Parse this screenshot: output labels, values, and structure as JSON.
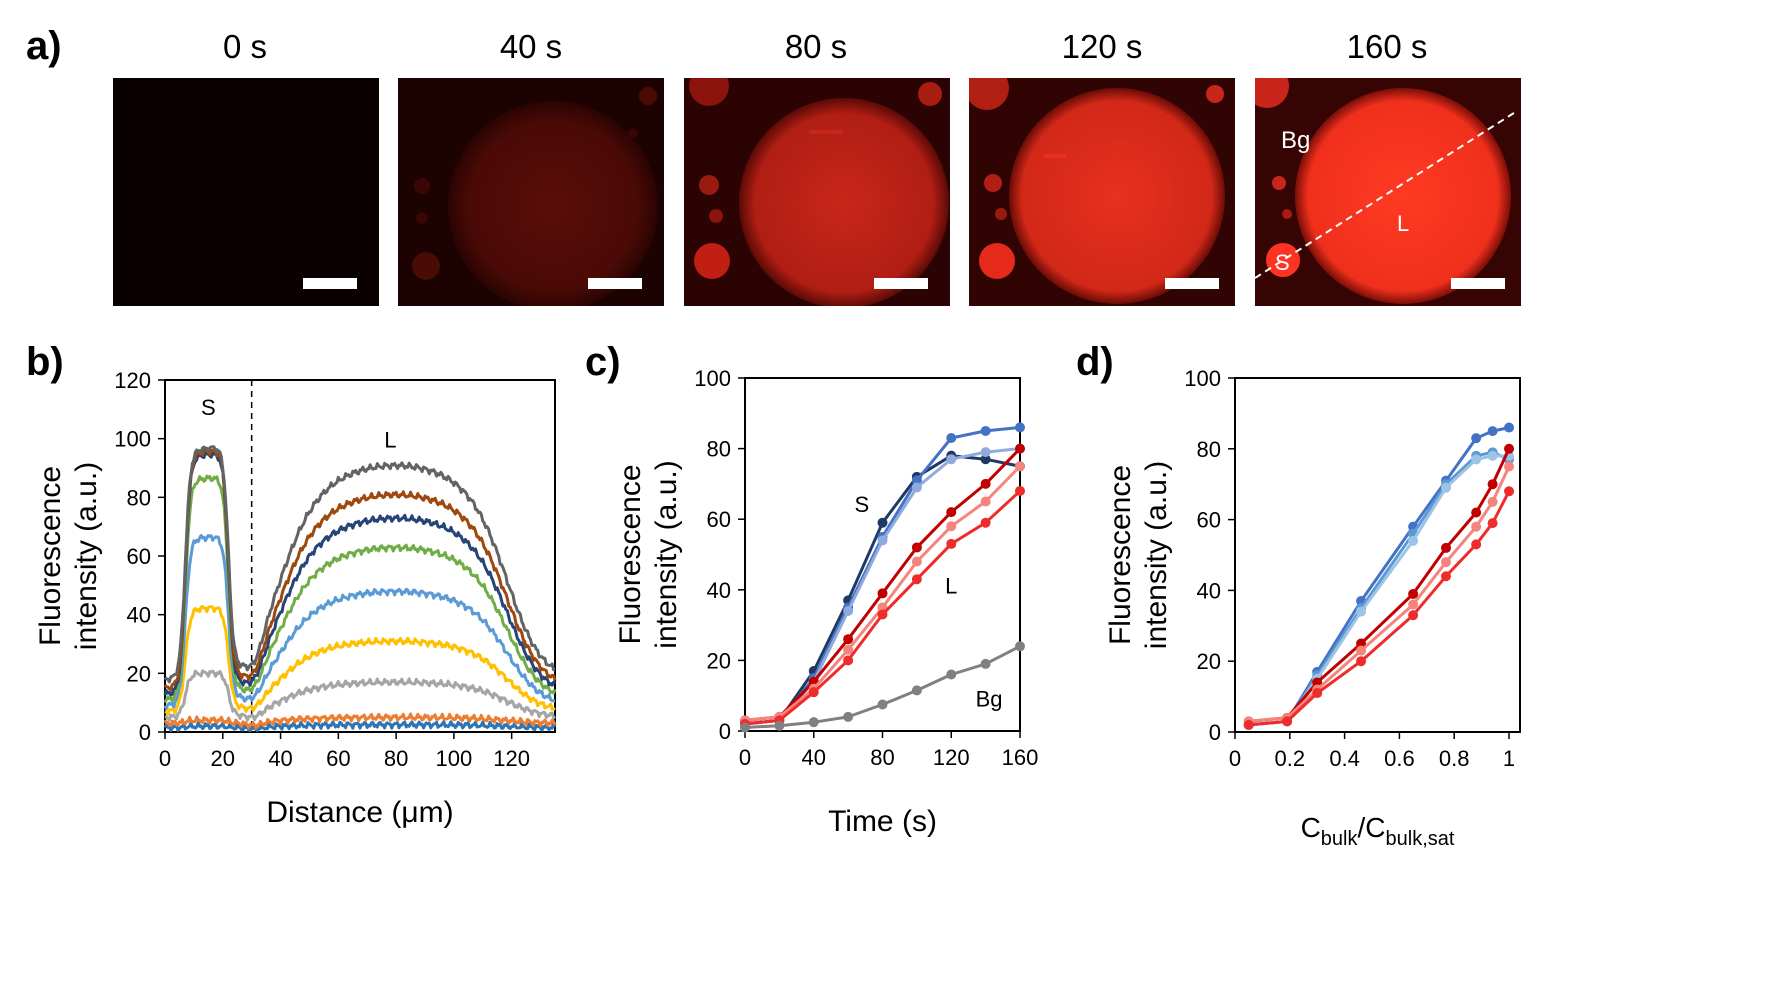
{
  "panels": {
    "a": {
      "letter": "a)",
      "frames": [
        {
          "time": "0 s",
          "level": 0.03
        },
        {
          "time": "40 s",
          "level": 0.22
        },
        {
          "time": "80 s",
          "level": 0.55
        },
        {
          "time": "120 s",
          "level": 0.72
        },
        {
          "time": "160 s",
          "level": 0.88
        }
      ],
      "annotations": {
        "bg": "Bg",
        "small": "S",
        "large": "L"
      },
      "colors": {
        "background": "#2a0000",
        "droplet": "#ff1a0a"
      }
    },
    "b": {
      "letter": "b)"
    },
    "c": {
      "letter": "c)"
    },
    "d": {
      "letter": "d)"
    }
  },
  "chart_data": [
    {
      "id": "b",
      "type": "line",
      "xlabel": "Distance (μm)",
      "ylabel_lines": [
        "Fluorescence",
        "intensity (a.u.)"
      ],
      "xlim": [
        0,
        135
      ],
      "ylim": [
        0,
        120
      ],
      "xticks": [
        0,
        20,
        40,
        60,
        80,
        100,
        120
      ],
      "yticks": [
        0,
        20,
        40,
        60,
        80,
        100,
        120
      ],
      "divider_x": 30,
      "annotations": [
        {
          "text": "S",
          "x": 15,
          "y": 108
        },
        {
          "text": "L",
          "x": 78,
          "y": 97
        }
      ],
      "series_params": [
        {
          "color": "#2e75b6",
          "base": 1.5,
          "S": 2,
          "L": 2.5
        },
        {
          "color": "#ed7d31",
          "base": 3,
          "S": 4,
          "L": 5
        },
        {
          "color": "#a5a5a5",
          "base": 5,
          "S": 20,
          "L": 17
        },
        {
          "color": "#ffc000",
          "base": 7,
          "S": 42,
          "L": 31
        },
        {
          "color": "#5b9bd5",
          "base": 9,
          "S": 66,
          "L": 48
        },
        {
          "color": "#70ad47",
          "base": 11,
          "S": 86,
          "L": 63
        },
        {
          "color": "#264478",
          "base": 13,
          "S": 94,
          "L": 73
        },
        {
          "color": "#9e480e",
          "base": 15,
          "S": 95,
          "L": 81
        },
        {
          "color": "#636363",
          "base": 18,
          "S": 96,
          "L": 91
        }
      ]
    },
    {
      "id": "c",
      "type": "line",
      "xlabel": "Time (s)",
      "ylabel_lines": [
        "Fluorescence",
        "intensity (a.u.)"
      ],
      "xlim": [
        0,
        160
      ],
      "ylim": [
        0,
        100
      ],
      "xticks": [
        0,
        40,
        80,
        120,
        160
      ],
      "yticks": [
        0,
        20,
        40,
        60,
        80,
        100
      ],
      "annotations": [
        {
          "text": "S",
          "x": 68,
          "y": 62
        },
        {
          "text": "L",
          "x": 120,
          "y": 39
        },
        {
          "text": "Bg",
          "x": 142,
          "y": 7
        }
      ],
      "x": [
        0,
        20,
        40,
        60,
        80,
        100,
        120,
        140,
        160
      ],
      "series": [
        {
          "color": "#1f3864",
          "values": [
            2,
            3,
            17,
            37,
            59,
            72,
            78,
            77,
            75
          ]
        },
        {
          "color": "#4472c4",
          "values": [
            2,
            3,
            15,
            35,
            55,
            71,
            83,
            85,
            86
          ]
        },
        {
          "color": "#8faadc",
          "values": [
            2,
            3,
            14,
            34,
            54,
            69,
            77,
            79,
            80
          ]
        },
        {
          "color": "#c00000",
          "values": [
            3,
            4,
            14,
            26,
            39,
            52,
            62,
            70,
            80
          ]
        },
        {
          "color": "#f4847c",
          "values": [
            3,
            4,
            12,
            23,
            35,
            48,
            58,
            65,
            75
          ]
        },
        {
          "color": "#ee2c2c",
          "values": [
            2,
            3,
            11,
            20,
            33,
            43,
            53,
            59,
            68
          ]
        },
        {
          "color": "#808080",
          "values": [
            1,
            1.5,
            2.5,
            4,
            7.5,
            11.5,
            16,
            19,
            24
          ]
        }
      ]
    },
    {
      "id": "d",
      "type": "line",
      "xlabel_main": "C",
      "xlabel_sub1": "bulk",
      "xlabel_slash": "/C",
      "xlabel_sub2": "bulk,sat",
      "ylabel_lines": [
        "Fluorescence",
        "intensity (a.u.)"
      ],
      "xlim": [
        0,
        1.04
      ],
      "ylim": [
        0,
        100
      ],
      "xticks": [
        0,
        0.2,
        0.4,
        0.6,
        0.8,
        1
      ],
      "xticklabels": [
        "0",
        "0.2",
        "0.4",
        "0.6",
        "0.8",
        "1"
      ],
      "yticks": [
        0,
        20,
        40,
        60,
        80,
        100
      ],
      "x": [
        0.05,
        0.19,
        0.3,
        0.46,
        0.65,
        0.77,
        0.88,
        0.94,
        1.0
      ],
      "series": [
        {
          "color": "#4472c4",
          "values": [
            2,
            3,
            17,
            37,
            58,
            71,
            83,
            85,
            86
          ]
        },
        {
          "color": "#5b9bd5",
          "values": [
            2,
            3,
            16,
            35,
            56,
            70,
            78,
            79,
            77
          ]
        },
        {
          "color": "#9dc3e6",
          "values": [
            2,
            3,
            15,
            34,
            54,
            69,
            77,
            78,
            78
          ]
        },
        {
          "color": "#c00000",
          "values": [
            3,
            4,
            14,
            25,
            39,
            52,
            62,
            70,
            80
          ]
        },
        {
          "color": "#f4847c",
          "values": [
            3,
            4,
            12,
            23,
            36,
            48,
            58,
            65,
            75
          ]
        },
        {
          "color": "#ee2c2c",
          "values": [
            2,
            3,
            11,
            20,
            33,
            44,
            53,
            59,
            68
          ]
        }
      ]
    }
  ]
}
